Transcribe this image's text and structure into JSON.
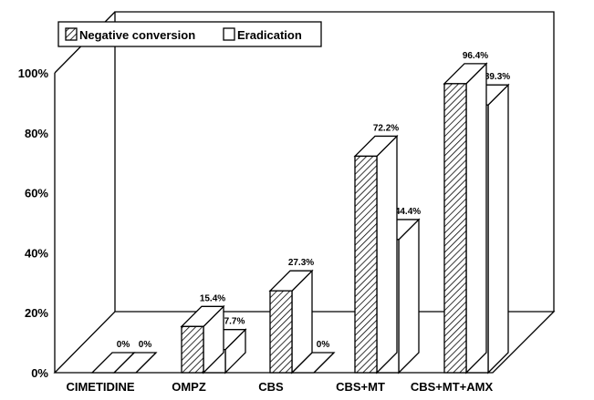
{
  "chart_data": {
    "type": "bar",
    "style": "3d-grouped",
    "title": "",
    "xlabel": "",
    "ylabel": "",
    "ylim": [
      0,
      100
    ],
    "y_ticks": [
      "0%",
      "20%",
      "40%",
      "60%",
      "80%",
      "100%"
    ],
    "categories": [
      "CIMETIDINE",
      "OMPZ",
      "CBS",
      "CBS+MT",
      "CBS+MT+AMX"
    ],
    "series": [
      {
        "name": "Negative conversion",
        "fill": "hatched",
        "values": [
          0,
          15.4,
          27.3,
          72.2,
          96.4
        ],
        "labels": [
          "0%",
          "15.4%",
          "27.3%",
          "72.2%",
          "96.4%"
        ]
      },
      {
        "name": "Eradication",
        "fill": "white",
        "values": [
          0,
          7.7,
          0,
          44.4,
          89.3
        ],
        "labels": [
          "0%",
          "7.7%",
          "0%",
          "44.4%",
          "89.3%"
        ]
      }
    ],
    "legend_position": "top-left",
    "colors": {
      "ink": "#000000",
      "background": "#ffffff"
    }
  }
}
